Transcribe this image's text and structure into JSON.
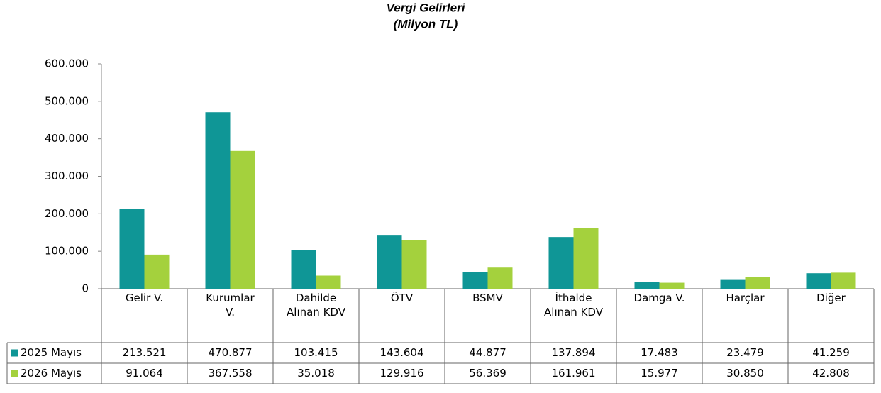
{
  "chart_data": {
    "type": "bar",
    "title": "Vergi Gelirleri",
    "subtitle": "(Milyon TL)",
    "categories": [
      "Gelir V.",
      "Kurumlar V.",
      "Dahilde Alınan KDV",
      "ÖTV",
      "BSMV",
      "İthalde Alınan KDV",
      "Damga V.",
      "Harçlar",
      "Diğer"
    ],
    "series": [
      {
        "name": "2025 Mayıs",
        "color": "#0f9696",
        "values": [
          213521,
          470877,
          103415,
          143604,
          44877,
          137894,
          17483,
          23479,
          41259
        ],
        "value_labels": [
          "213.521",
          "470.877",
          "103.415",
          "143.604",
          "44.877",
          "137.894",
          "17.483",
          "23.479",
          "41.259"
        ]
      },
      {
        "name": "2026 Mayıs",
        "color": "#a4d13d",
        "values": [
          91064,
          367558,
          35018,
          129916,
          56369,
          161961,
          15977,
          30850,
          42808
        ],
        "value_labels": [
          "91.064",
          "367.558",
          "35.018",
          "129.916",
          "56.369",
          "161.961",
          "15.977",
          "30.850",
          "42.808"
        ]
      }
    ],
    "ylim": [
      0,
      600000
    ],
    "yticks": [
      0,
      {
        "value": 100000,
        "label": "100.000"
      },
      {
        "value": 200000,
        "label": "200.000"
      },
      {
        "value": 300000,
        "label": "300.000"
      },
      {
        "value": 400000,
        "label": "400.000"
      },
      {
        "value": 500000,
        "label": "500.000"
      },
      {
        "value": 600000,
        "label": "600.000"
      }
    ],
    "grid": false
  }
}
